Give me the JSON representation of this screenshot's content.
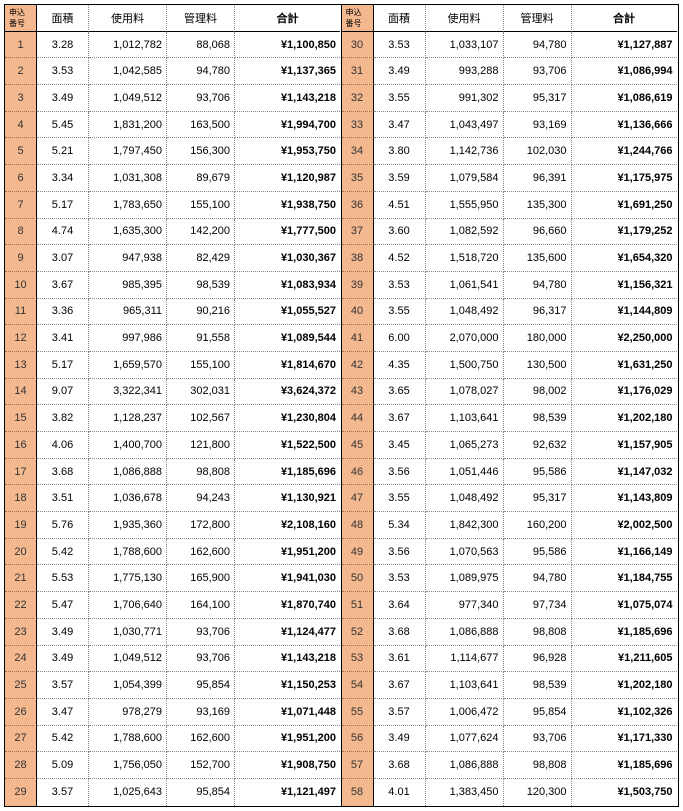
{
  "headers": {
    "id": "申込番号",
    "area": "面積",
    "usage": "使用料",
    "mgmt": "管理料",
    "total": "合計"
  },
  "currency_prefix": "¥",
  "left": [
    {
      "id": "1",
      "area": "3.28",
      "usage": "1,012,782",
      "mgmt": "88,068",
      "total": "1,100,850"
    },
    {
      "id": "2",
      "area": "3.53",
      "usage": "1,042,585",
      "mgmt": "94,780",
      "total": "1,137,365"
    },
    {
      "id": "3",
      "area": "3.49",
      "usage": "1,049,512",
      "mgmt": "93,706",
      "total": "1,143,218"
    },
    {
      "id": "4",
      "area": "5.45",
      "usage": "1,831,200",
      "mgmt": "163,500",
      "total": "1,994,700"
    },
    {
      "id": "5",
      "area": "5.21",
      "usage": "1,797,450",
      "mgmt": "156,300",
      "total": "1,953,750"
    },
    {
      "id": "6",
      "area": "3.34",
      "usage": "1,031,308",
      "mgmt": "89,679",
      "total": "1,120,987"
    },
    {
      "id": "7",
      "area": "5.17",
      "usage": "1,783,650",
      "mgmt": "155,100",
      "total": "1,938,750"
    },
    {
      "id": "8",
      "area": "4.74",
      "usage": "1,635,300",
      "mgmt": "142,200",
      "total": "1,777,500"
    },
    {
      "id": "9",
      "area": "3.07",
      "usage": "947,938",
      "mgmt": "82,429",
      "total": "1,030,367"
    },
    {
      "id": "10",
      "area": "3.67",
      "usage": "985,395",
      "mgmt": "98,539",
      "total": "1,083,934"
    },
    {
      "id": "11",
      "area": "3.36",
      "usage": "965,311",
      "mgmt": "90,216",
      "total": "1,055,527"
    },
    {
      "id": "12",
      "area": "3.41",
      "usage": "997,986",
      "mgmt": "91,558",
      "total": "1,089,544"
    },
    {
      "id": "13",
      "area": "5.17",
      "usage": "1,659,570",
      "mgmt": "155,100",
      "total": "1,814,670"
    },
    {
      "id": "14",
      "area": "9.07",
      "usage": "3,322,341",
      "mgmt": "302,031",
      "total": "3,624,372"
    },
    {
      "id": "15",
      "area": "3.82",
      "usage": "1,128,237",
      "mgmt": "102,567",
      "total": "1,230,804"
    },
    {
      "id": "16",
      "area": "4.06",
      "usage": "1,400,700",
      "mgmt": "121,800",
      "total": "1,522,500"
    },
    {
      "id": "17",
      "area": "3.68",
      "usage": "1,086,888",
      "mgmt": "98,808",
      "total": "1,185,696"
    },
    {
      "id": "18",
      "area": "3.51",
      "usage": "1,036,678",
      "mgmt": "94,243",
      "total": "1,130,921"
    },
    {
      "id": "19",
      "area": "5.76",
      "usage": "1,935,360",
      "mgmt": "172,800",
      "total": "2,108,160"
    },
    {
      "id": "20",
      "area": "5.42",
      "usage": "1,788,600",
      "mgmt": "162,600",
      "total": "1,951,200"
    },
    {
      "id": "21",
      "area": "5.53",
      "usage": "1,775,130",
      "mgmt": "165,900",
      "total": "1,941,030"
    },
    {
      "id": "22",
      "area": "5.47",
      "usage": "1,706,640",
      "mgmt": "164,100",
      "total": "1,870,740"
    },
    {
      "id": "23",
      "area": "3.49",
      "usage": "1,030,771",
      "mgmt": "93,706",
      "total": "1,124,477"
    },
    {
      "id": "24",
      "area": "3.49",
      "usage": "1,049,512",
      "mgmt": "93,706",
      "total": "1,143,218"
    },
    {
      "id": "25",
      "area": "3.57",
      "usage": "1,054,399",
      "mgmt": "95,854",
      "total": "1,150,253"
    },
    {
      "id": "26",
      "area": "3.47",
      "usage": "978,279",
      "mgmt": "93,169",
      "total": "1,071,448"
    },
    {
      "id": "27",
      "area": "5.42",
      "usage": "1,788,600",
      "mgmt": "162,600",
      "total": "1,951,200"
    },
    {
      "id": "28",
      "area": "5.09",
      "usage": "1,756,050",
      "mgmt": "152,700",
      "total": "1,908,750"
    },
    {
      "id": "29",
      "area": "3.57",
      "usage": "1,025,643",
      "mgmt": "95,854",
      "total": "1,121,497"
    }
  ],
  "right": [
    {
      "id": "30",
      "area": "3.53",
      "usage": "1,033,107",
      "mgmt": "94,780",
      "total": "1,127,887"
    },
    {
      "id": "31",
      "area": "3.49",
      "usage": "993,288",
      "mgmt": "93,706",
      "total": "1,086,994"
    },
    {
      "id": "32",
      "area": "3.55",
      "usage": "991,302",
      "mgmt": "95,317",
      "total": "1,086,619"
    },
    {
      "id": "33",
      "area": "3.47",
      "usage": "1,043,497",
      "mgmt": "93,169",
      "total": "1,136,666"
    },
    {
      "id": "34",
      "area": "3.80",
      "usage": "1,142,736",
      "mgmt": "102,030",
      "total": "1,244,766"
    },
    {
      "id": "35",
      "area": "3.59",
      "usage": "1,079,584",
      "mgmt": "96,391",
      "total": "1,175,975"
    },
    {
      "id": "36",
      "area": "4.51",
      "usage": "1,555,950",
      "mgmt": "135,300",
      "total": "1,691,250"
    },
    {
      "id": "37",
      "area": "3.60",
      "usage": "1,082,592",
      "mgmt": "96,660",
      "total": "1,179,252"
    },
    {
      "id": "38",
      "area": "4.52",
      "usage": "1,518,720",
      "mgmt": "135,600",
      "total": "1,654,320"
    },
    {
      "id": "39",
      "area": "3.53",
      "usage": "1,061,541",
      "mgmt": "94,780",
      "total": "1,156,321"
    },
    {
      "id": "40",
      "area": "3.55",
      "usage": "1,048,492",
      "mgmt": "96,317",
      "total": "1,144,809"
    },
    {
      "id": "41",
      "area": "6.00",
      "usage": "2,070,000",
      "mgmt": "180,000",
      "total": "2,250,000"
    },
    {
      "id": "42",
      "area": "4.35",
      "usage": "1,500,750",
      "mgmt": "130,500",
      "total": "1,631,250"
    },
    {
      "id": "43",
      "area": "3.65",
      "usage": "1,078,027",
      "mgmt": "98,002",
      "total": "1,176,029"
    },
    {
      "id": "44",
      "area": "3.67",
      "usage": "1,103,641",
      "mgmt": "98,539",
      "total": "1,202,180"
    },
    {
      "id": "45",
      "area": "3.45",
      "usage": "1,065,273",
      "mgmt": "92,632",
      "total": "1,157,905"
    },
    {
      "id": "46",
      "area": "3.56",
      "usage": "1,051,446",
      "mgmt": "95,586",
      "total": "1,147,032"
    },
    {
      "id": "47",
      "area": "3.55",
      "usage": "1,048,492",
      "mgmt": "95,317",
      "total": "1,143,809"
    },
    {
      "id": "48",
      "area": "5.34",
      "usage": "1,842,300",
      "mgmt": "160,200",
      "total": "2,002,500"
    },
    {
      "id": "49",
      "area": "3.56",
      "usage": "1,070,563",
      "mgmt": "95,586",
      "total": "1,166,149"
    },
    {
      "id": "50",
      "area": "3.53",
      "usage": "1,089,975",
      "mgmt": "94,780",
      "total": "1,184,755"
    },
    {
      "id": "51",
      "area": "3.64",
      "usage": "977,340",
      "mgmt": "97,734",
      "total": "1,075,074"
    },
    {
      "id": "52",
      "area": "3.68",
      "usage": "1,086,888",
      "mgmt": "98,808",
      "total": "1,185,696"
    },
    {
      "id": "53",
      "area": "3.61",
      "usage": "1,114,677",
      "mgmt": "96,928",
      "total": "1,211,605"
    },
    {
      "id": "54",
      "area": "3.67",
      "usage": "1,103,641",
      "mgmt": "98,539",
      "total": "1,202,180"
    },
    {
      "id": "55",
      "area": "3.57",
      "usage": "1,006,472",
      "mgmt": "95,854",
      "total": "1,102,326"
    },
    {
      "id": "56",
      "area": "3.49",
      "usage": "1,077,624",
      "mgmt": "93,706",
      "total": "1,171,330"
    },
    {
      "id": "57",
      "area": "3.68",
      "usage": "1,086,888",
      "mgmt": "98,808",
      "total": "1,185,696"
    },
    {
      "id": "58",
      "area": "4.01",
      "usage": "1,383,450",
      "mgmt": "120,300",
      "total": "1,503,750"
    }
  ]
}
